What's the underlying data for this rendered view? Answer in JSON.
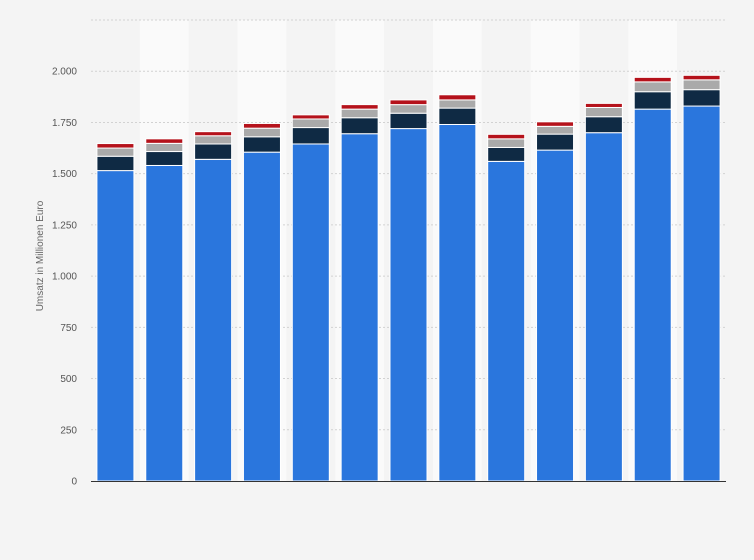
{
  "chart_data": {
    "type": "bar",
    "stacked": true,
    "title": "",
    "xlabel": "",
    "ylabel": "Umsatz in Millionen Euro",
    "ylim": [
      0,
      2250
    ],
    "yticks": [
      0,
      250,
      500,
      750,
      1000,
      1250,
      1500,
      1750,
      2000
    ],
    "ytick_labels": [
      "0",
      "250",
      "500",
      "750",
      "1.000",
      "1.250",
      "1.500",
      "1.750",
      "2.000"
    ],
    "grid": true,
    "legend": "none",
    "categories": [
      "",
      "",
      "",
      "",
      "",
      "",
      "",
      "",
      "",
      "",
      "",
      "",
      ""
    ],
    "series": [
      {
        "color": "#2a76dd",
        "values": [
          1515,
          1540,
          1570,
          1605,
          1645,
          1695,
          1720,
          1740,
          1560,
          1615,
          1700,
          1815,
          1830
        ]
      },
      {
        "color": "#0f2a44",
        "values": [
          70,
          68,
          75,
          75,
          80,
          78,
          75,
          80,
          68,
          78,
          78,
          85,
          80
        ]
      },
      {
        "color": "#aaaaaa",
        "values": [
          40,
          40,
          40,
          42,
          42,
          42,
          42,
          40,
          42,
          38,
          45,
          48,
          48
        ]
      },
      {
        "color": "#b5121b",
        "values": [
          22,
          22,
          20,
          23,
          20,
          22,
          23,
          25,
          22,
          22,
          20,
          22,
          22
        ]
      }
    ]
  }
}
